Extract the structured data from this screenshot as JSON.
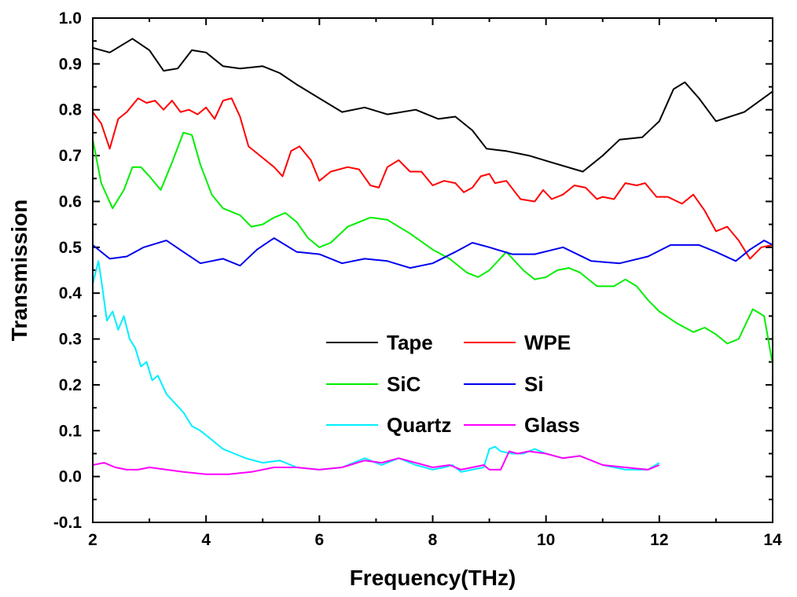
{
  "chart_data": {
    "type": "line",
    "title": "",
    "xlabel": "Frequency(THz)",
    "ylabel": "Transmission",
    "xlim": [
      2,
      14
    ],
    "ylim": [
      -0.1,
      1.0
    ],
    "xticks": [
      "2",
      "4",
      "6",
      "8",
      "10",
      "12",
      "14"
    ],
    "yticks": [
      "-0.1",
      "0.0",
      "0.1",
      "0.2",
      "0.3",
      "0.4",
      "0.5",
      "0.6",
      "0.7",
      "0.8",
      "0.9",
      "1.0"
    ],
    "grid": false,
    "legend_position": "center",
    "series": [
      {
        "name": "Tape",
        "color": "#000000",
        "x": [
          2.0,
          2.3,
          2.7,
          3.0,
          3.25,
          3.5,
          3.75,
          4.0,
          4.3,
          4.6,
          5.0,
          5.3,
          5.6,
          6.0,
          6.4,
          6.8,
          7.2,
          7.7,
          8.1,
          8.4,
          8.7,
          8.95,
          9.3,
          9.7,
          10.1,
          10.65,
          11.0,
          11.3,
          11.7,
          12.0,
          12.25,
          12.45,
          12.7,
          13.0,
          13.5,
          14.0
        ],
        "y": [
          0.935,
          0.925,
          0.955,
          0.93,
          0.885,
          0.89,
          0.93,
          0.925,
          0.895,
          0.89,
          0.895,
          0.88,
          0.855,
          0.825,
          0.795,
          0.805,
          0.79,
          0.8,
          0.78,
          0.785,
          0.755,
          0.715,
          0.71,
          0.7,
          0.685,
          0.665,
          0.7,
          0.735,
          0.74,
          0.775,
          0.845,
          0.86,
          0.825,
          0.775,
          0.795,
          0.84
        ]
      },
      {
        "name": "WPE",
        "color": "#ff0000",
        "x": [
          2.0,
          2.15,
          2.3,
          2.45,
          2.6,
          2.8,
          2.95,
          3.1,
          3.25,
          3.4,
          3.55,
          3.7,
          3.85,
          4.0,
          4.15,
          4.3,
          4.45,
          4.6,
          4.75,
          5.0,
          5.2,
          5.35,
          5.5,
          5.65,
          5.85,
          6.0,
          6.2,
          6.5,
          6.7,
          6.9,
          7.05,
          7.2,
          7.4,
          7.6,
          7.8,
          8.0,
          8.2,
          8.4,
          8.55,
          8.7,
          8.85,
          9.0,
          9.1,
          9.3,
          9.55,
          9.8,
          9.95,
          10.1,
          10.3,
          10.5,
          10.7,
          10.9,
          11.0,
          11.2,
          11.4,
          11.6,
          11.75,
          11.95,
          12.15,
          12.4,
          12.6,
          12.8,
          13.0,
          13.2,
          13.4,
          13.6,
          13.8,
          14.0
        ],
        "y": [
          0.795,
          0.77,
          0.715,
          0.78,
          0.795,
          0.825,
          0.815,
          0.82,
          0.8,
          0.82,
          0.795,
          0.8,
          0.79,
          0.805,
          0.78,
          0.82,
          0.825,
          0.785,
          0.72,
          0.695,
          0.675,
          0.655,
          0.71,
          0.72,
          0.69,
          0.645,
          0.665,
          0.675,
          0.67,
          0.635,
          0.63,
          0.675,
          0.69,
          0.665,
          0.665,
          0.635,
          0.645,
          0.64,
          0.62,
          0.63,
          0.655,
          0.66,
          0.64,
          0.645,
          0.605,
          0.6,
          0.625,
          0.605,
          0.615,
          0.635,
          0.63,
          0.605,
          0.61,
          0.605,
          0.64,
          0.635,
          0.64,
          0.61,
          0.61,
          0.595,
          0.615,
          0.58,
          0.535,
          0.545,
          0.515,
          0.475,
          0.5,
          0.505
        ]
      },
      {
        "name": "SiC",
        "color": "#00ee00",
        "x": [
          2.0,
          2.15,
          2.35,
          2.55,
          2.7,
          2.85,
          3.0,
          3.2,
          3.4,
          3.6,
          3.75,
          3.9,
          4.1,
          4.3,
          4.6,
          4.8,
          5.0,
          5.2,
          5.4,
          5.6,
          5.8,
          6.0,
          6.2,
          6.5,
          6.9,
          7.2,
          7.6,
          8.0,
          8.3,
          8.6,
          8.8,
          9.0,
          9.3,
          9.6,
          9.8,
          10.0,
          10.2,
          10.4,
          10.6,
          10.9,
          11.2,
          11.4,
          11.6,
          11.8,
          12.0,
          12.3,
          12.6,
          12.8,
          13.0,
          13.2,
          13.4,
          13.65,
          13.85,
          14.0
        ],
        "y": [
          0.735,
          0.64,
          0.585,
          0.625,
          0.675,
          0.675,
          0.655,
          0.625,
          0.685,
          0.75,
          0.745,
          0.68,
          0.615,
          0.585,
          0.57,
          0.545,
          0.55,
          0.565,
          0.575,
          0.555,
          0.52,
          0.5,
          0.51,
          0.545,
          0.565,
          0.56,
          0.53,
          0.495,
          0.475,
          0.445,
          0.435,
          0.45,
          0.49,
          0.45,
          0.43,
          0.435,
          0.45,
          0.455,
          0.445,
          0.415,
          0.415,
          0.43,
          0.415,
          0.385,
          0.36,
          0.335,
          0.315,
          0.325,
          0.31,
          0.29,
          0.3,
          0.365,
          0.35,
          0.245
        ]
      },
      {
        "name": "Si",
        "color": "#0000ee",
        "x": [
          2.0,
          2.3,
          2.6,
          2.9,
          3.3,
          3.6,
          3.9,
          4.3,
          4.6,
          4.9,
          5.2,
          5.6,
          6.0,
          6.4,
          6.8,
          7.2,
          7.6,
          8.0,
          8.4,
          8.7,
          9.0,
          9.4,
          9.8,
          10.3,
          10.8,
          11.3,
          11.8,
          12.2,
          12.7,
          13.0,
          13.35,
          13.6,
          13.85,
          14.0
        ],
        "y": [
          0.505,
          0.475,
          0.48,
          0.5,
          0.515,
          0.49,
          0.465,
          0.475,
          0.46,
          0.495,
          0.52,
          0.49,
          0.485,
          0.465,
          0.475,
          0.47,
          0.455,
          0.465,
          0.49,
          0.51,
          0.5,
          0.485,
          0.485,
          0.5,
          0.47,
          0.465,
          0.48,
          0.505,
          0.505,
          0.49,
          0.47,
          0.495,
          0.515,
          0.505
        ]
      },
      {
        "name": "Quartz",
        "color": "#00eeff",
        "x": [
          2.0,
          2.1,
          2.15,
          2.25,
          2.35,
          2.45,
          2.55,
          2.65,
          2.75,
          2.85,
          2.95,
          3.05,
          3.15,
          3.3,
          3.45,
          3.6,
          3.75,
          3.9,
          4.1,
          4.3,
          4.5,
          4.7,
          5.0,
          5.3,
          5.6,
          6.0,
          6.4,
          6.8,
          7.1,
          7.4,
          7.7,
          8.0,
          8.2,
          8.35,
          8.5,
          8.7,
          8.9,
          9.0,
          9.1,
          9.2,
          9.4,
          9.6,
          9.8,
          10.0,
          10.3,
          10.6,
          11.0,
          11.4,
          11.8,
          12.0
        ],
        "y": [
          0.42,
          0.47,
          0.43,
          0.34,
          0.36,
          0.32,
          0.35,
          0.3,
          0.28,
          0.24,
          0.25,
          0.21,
          0.22,
          0.18,
          0.16,
          0.14,
          0.11,
          0.1,
          0.08,
          0.06,
          0.05,
          0.04,
          0.03,
          0.035,
          0.02,
          0.015,
          0.02,
          0.04,
          0.025,
          0.04,
          0.025,
          0.015,
          0.02,
          0.025,
          0.01,
          0.015,
          0.02,
          0.06,
          0.065,
          0.055,
          0.05,
          0.05,
          0.06,
          0.05,
          0.04,
          0.045,
          0.025,
          0.015,
          0.015,
          0.03
        ]
      },
      {
        "name": "Glass",
        "color": "#ff00ff",
        "x": [
          2.0,
          2.2,
          2.4,
          2.6,
          2.8,
          3.0,
          3.3,
          3.6,
          4.0,
          4.4,
          4.8,
          5.2,
          5.6,
          6.0,
          6.4,
          6.8,
          7.1,
          7.4,
          7.7,
          8.0,
          8.3,
          8.5,
          8.7,
          8.9,
          9.0,
          9.2,
          9.35,
          9.5,
          9.7,
          10.0,
          10.3,
          10.6,
          11.0,
          11.4,
          11.8,
          12.0
        ],
        "y": [
          0.025,
          0.03,
          0.02,
          0.015,
          0.015,
          0.02,
          0.015,
          0.01,
          0.005,
          0.005,
          0.01,
          0.02,
          0.02,
          0.015,
          0.02,
          0.035,
          0.03,
          0.04,
          0.03,
          0.02,
          0.025,
          0.015,
          0.02,
          0.025,
          0.015,
          0.015,
          0.055,
          0.05,
          0.055,
          0.05,
          0.04,
          0.045,
          0.025,
          0.02,
          0.015,
          0.025
        ]
      }
    ]
  }
}
